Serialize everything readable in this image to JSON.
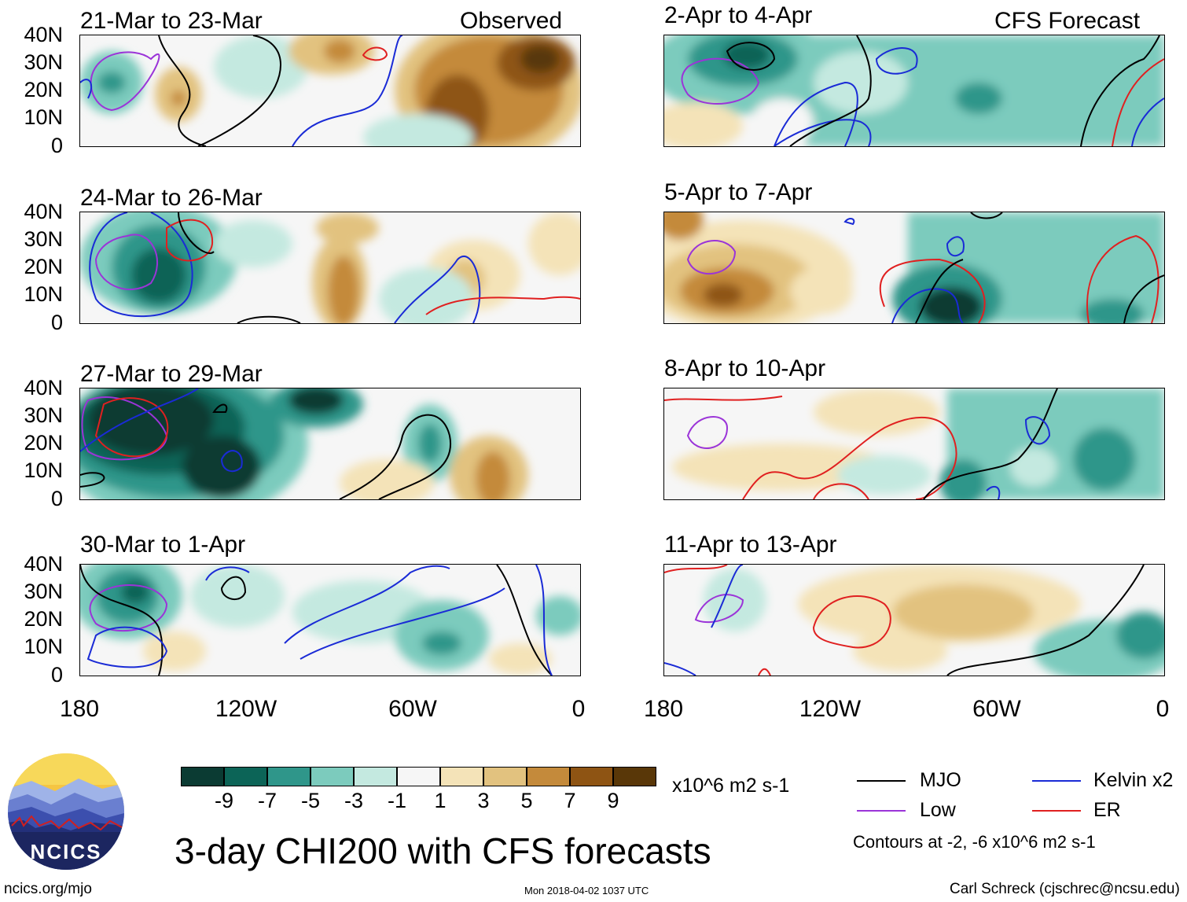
{
  "header": {
    "observed_label": "Observed",
    "forecast_label": "CFS Forecast"
  },
  "panels_left": [
    {
      "title": "21-Mar to 23-Mar"
    },
    {
      "title": "24-Mar to 26-Mar"
    },
    {
      "title": "27-Mar to 29-Mar"
    },
    {
      "title": "30-Mar to 1-Apr"
    }
  ],
  "panels_right": [
    {
      "title": "2-Apr to 4-Apr"
    },
    {
      "title": "5-Apr to 7-Apr"
    },
    {
      "title": "8-Apr to 10-Apr"
    },
    {
      "title": "11-Apr to 13-Apr"
    }
  ],
  "lat_labels": [
    "40N",
    "30N",
    "20N",
    "10N",
    "0"
  ],
  "lon_labels": [
    "180",
    "120W",
    "60W",
    "0"
  ],
  "colorbar": {
    "colors": [
      "#0b3b33",
      "#0c6457",
      "#2f968a",
      "#7ccbbd",
      "#c4e9e0",
      "#f6f6f6",
      "#f4e3b8",
      "#e2c27f",
      "#c48a3b",
      "#8e5413",
      "#593708"
    ],
    "tick_labels": [
      "-9",
      "-7",
      "-5",
      "-3",
      "-1",
      "1",
      "3",
      "5",
      "7",
      "9"
    ],
    "units": "x10^6 m2 s-1"
  },
  "legend": {
    "mjo": "MJO",
    "kelvin": "Kelvin x2",
    "low": "Low",
    "er": "ER",
    "mjo_color": "#000000",
    "kelvin_color": "#1a2bd6",
    "low_color": "#9b34d8",
    "er_color": "#e02020",
    "note": "Contours at -2, -6 x10^6 m2 s-1"
  },
  "logo": {
    "text": "NCICS"
  },
  "main_title": "3-day CHI200 with CFS forecasts",
  "footer": {
    "left": "ncics.org/mjo",
    "center": "Mon 2018-04-02 1037 UTC",
    "right": "Carl Schreck (cjschrec@ncsu.edu)"
  }
}
